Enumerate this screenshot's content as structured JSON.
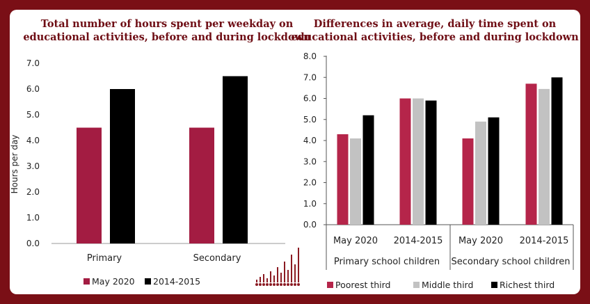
{
  "colors": {
    "frame": "#7a0f16",
    "title": "#6e0d14",
    "may2020": "#a31c42",
    "y2014": "#000000",
    "poorest": "#b5254a",
    "middle": "#c2c2c2",
    "richest": "#000000",
    "logo": "#8b1a22"
  },
  "chart_data": [
    {
      "type": "bar",
      "title": "Total number of hours spent per weekday on educational activities, before and during lockdown",
      "title_lines": [
        "Total number of hours spent per weekday on",
        "educational activities, before and during lockdown"
      ],
      "ylabel": "Hours per day",
      "xlabel": "",
      "ylim": [
        0,
        7
      ],
      "yticks": [
        "0.0",
        "1.0",
        "2.0",
        "3.0",
        "4.0",
        "5.0",
        "6.0",
        "7.0"
      ],
      "categories": [
        "Primary",
        "Secondary"
      ],
      "series": [
        {
          "name": "May 2020",
          "values": [
            4.5,
            4.5
          ]
        },
        {
          "name": "2014-2015",
          "values": [
            6.0,
            6.5
          ]
        }
      ],
      "grid": false,
      "legend": "bottom"
    },
    {
      "type": "bar",
      "title": "Differences in average, daily time spent on educational activities, before and during lockdown",
      "title_lines": [
        "Differences in average, daily time spent on",
        "educational activities, before and during lockdown"
      ],
      "ylim": [
        0,
        8
      ],
      "yticks": [
        "0.0",
        "1.0",
        "2.0",
        "3.0",
        "4.0",
        "5.0",
        "6.0",
        "7.0",
        "8.0"
      ],
      "categories": [
        "May 2020",
        "2014-2015",
        "May 2020",
        "2014-2015"
      ],
      "groups": [
        "Primary school children",
        "Secondary school children"
      ],
      "series": [
        {
          "name": "Poorest third",
          "values": [
            4.3,
            6.0,
            4.1,
            6.7
          ]
        },
        {
          "name": "Middle third",
          "values": [
            4.1,
            6.0,
            4.9,
            6.45
          ]
        },
        {
          "name": "Richest third",
          "values": [
            5.2,
            5.9,
            5.1,
            7.0
          ]
        }
      ],
      "grid": false,
      "legend": "bottom"
    }
  ]
}
